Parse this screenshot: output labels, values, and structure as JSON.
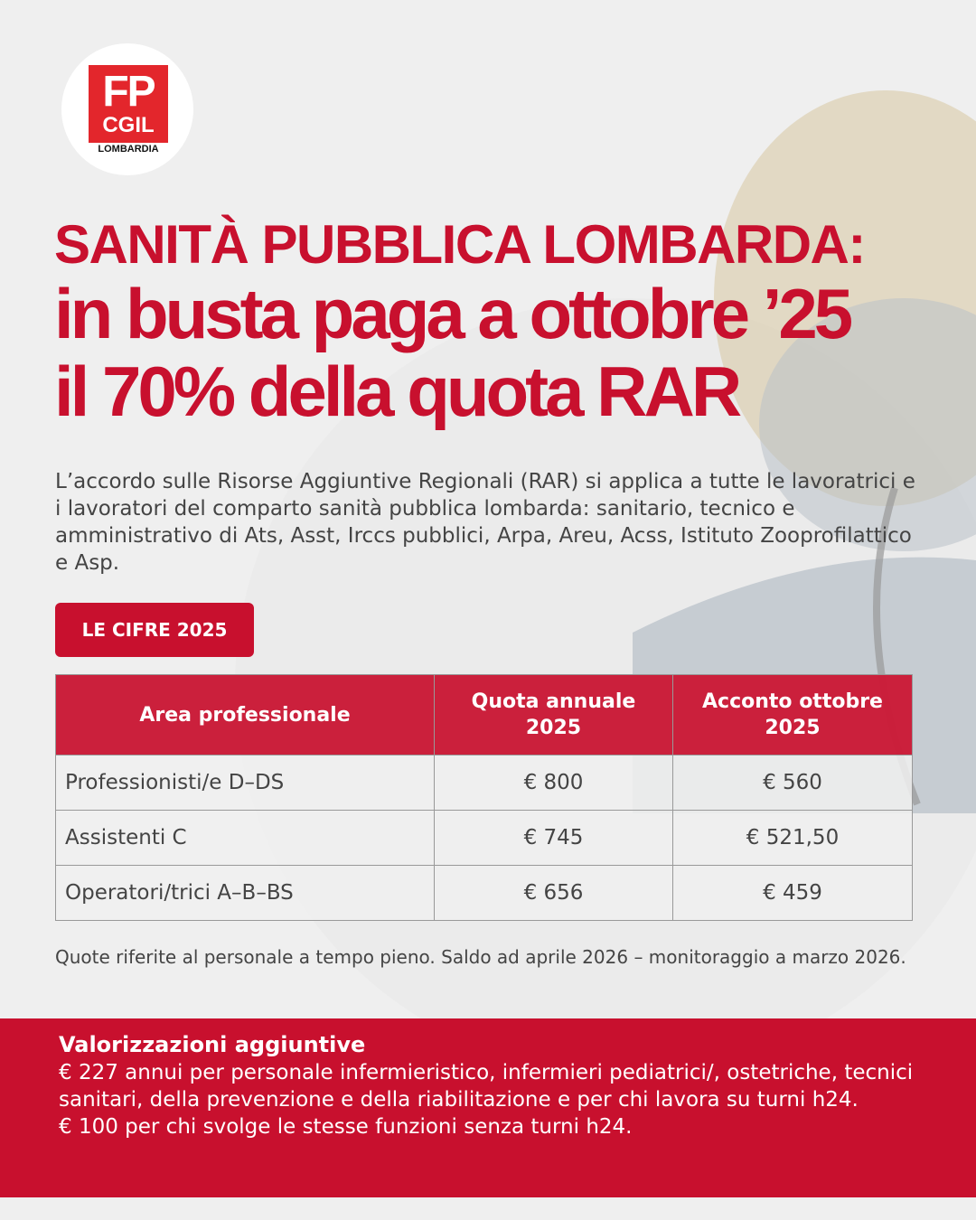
{
  "logo": {
    "line1": "FP",
    "line2": "CGIL",
    "line3": "LOMBARDIA"
  },
  "title": {
    "line1": "SANITÀ PUBBLICA LOMBARDA:",
    "line2": "in busta paga a ottobre ’25",
    "line3": "il 70% della quota RAR"
  },
  "intro": "L’accordo sulle Risorse Aggiuntive Regionali (RAR) si applica a tutte le lavoratrici e i  lavoratori del comparto sanità pubblica lombarda: sanitario, tecnico e amministrativo di Ats, Asst, Irccs pubblici, Arpa, Areu, Acss, Istituto Zooprofilattico e Asp.",
  "section_label": "LE CIFRE 2025",
  "table": {
    "headers": [
      "Area professionale",
      "Quota annuale 2025",
      "Acconto ottobre 2025"
    ],
    "rows": [
      [
        "Professionisti/e D–DS",
        "€ 800",
        "€ 560"
      ],
      [
        "Assistenti C",
        "€ 745",
        "€ 521,50"
      ],
      [
        "Operatori/trici A–B–BS",
        "€ 656",
        "€ 459"
      ]
    ]
  },
  "note": "Quote riferite al personale a tempo pieno.  Saldo ad aprile 2026 – monitoraggio a marzo 2026.",
  "extra": {
    "heading": "Valorizzazioni aggiuntive",
    "line1": "€ 227 annui per personale infermieristico, infermieri pediatrici/, ostetriche, tecnici  sanitari, della prevenzione e della riabilitazione e per chi lavora su turni h24.",
    "line2": "€ 100 per chi svolge le stesse funzioni senza turni h24."
  },
  "colors": {
    "brand_red": "#c8102e",
    "background": "#efefef"
  }
}
